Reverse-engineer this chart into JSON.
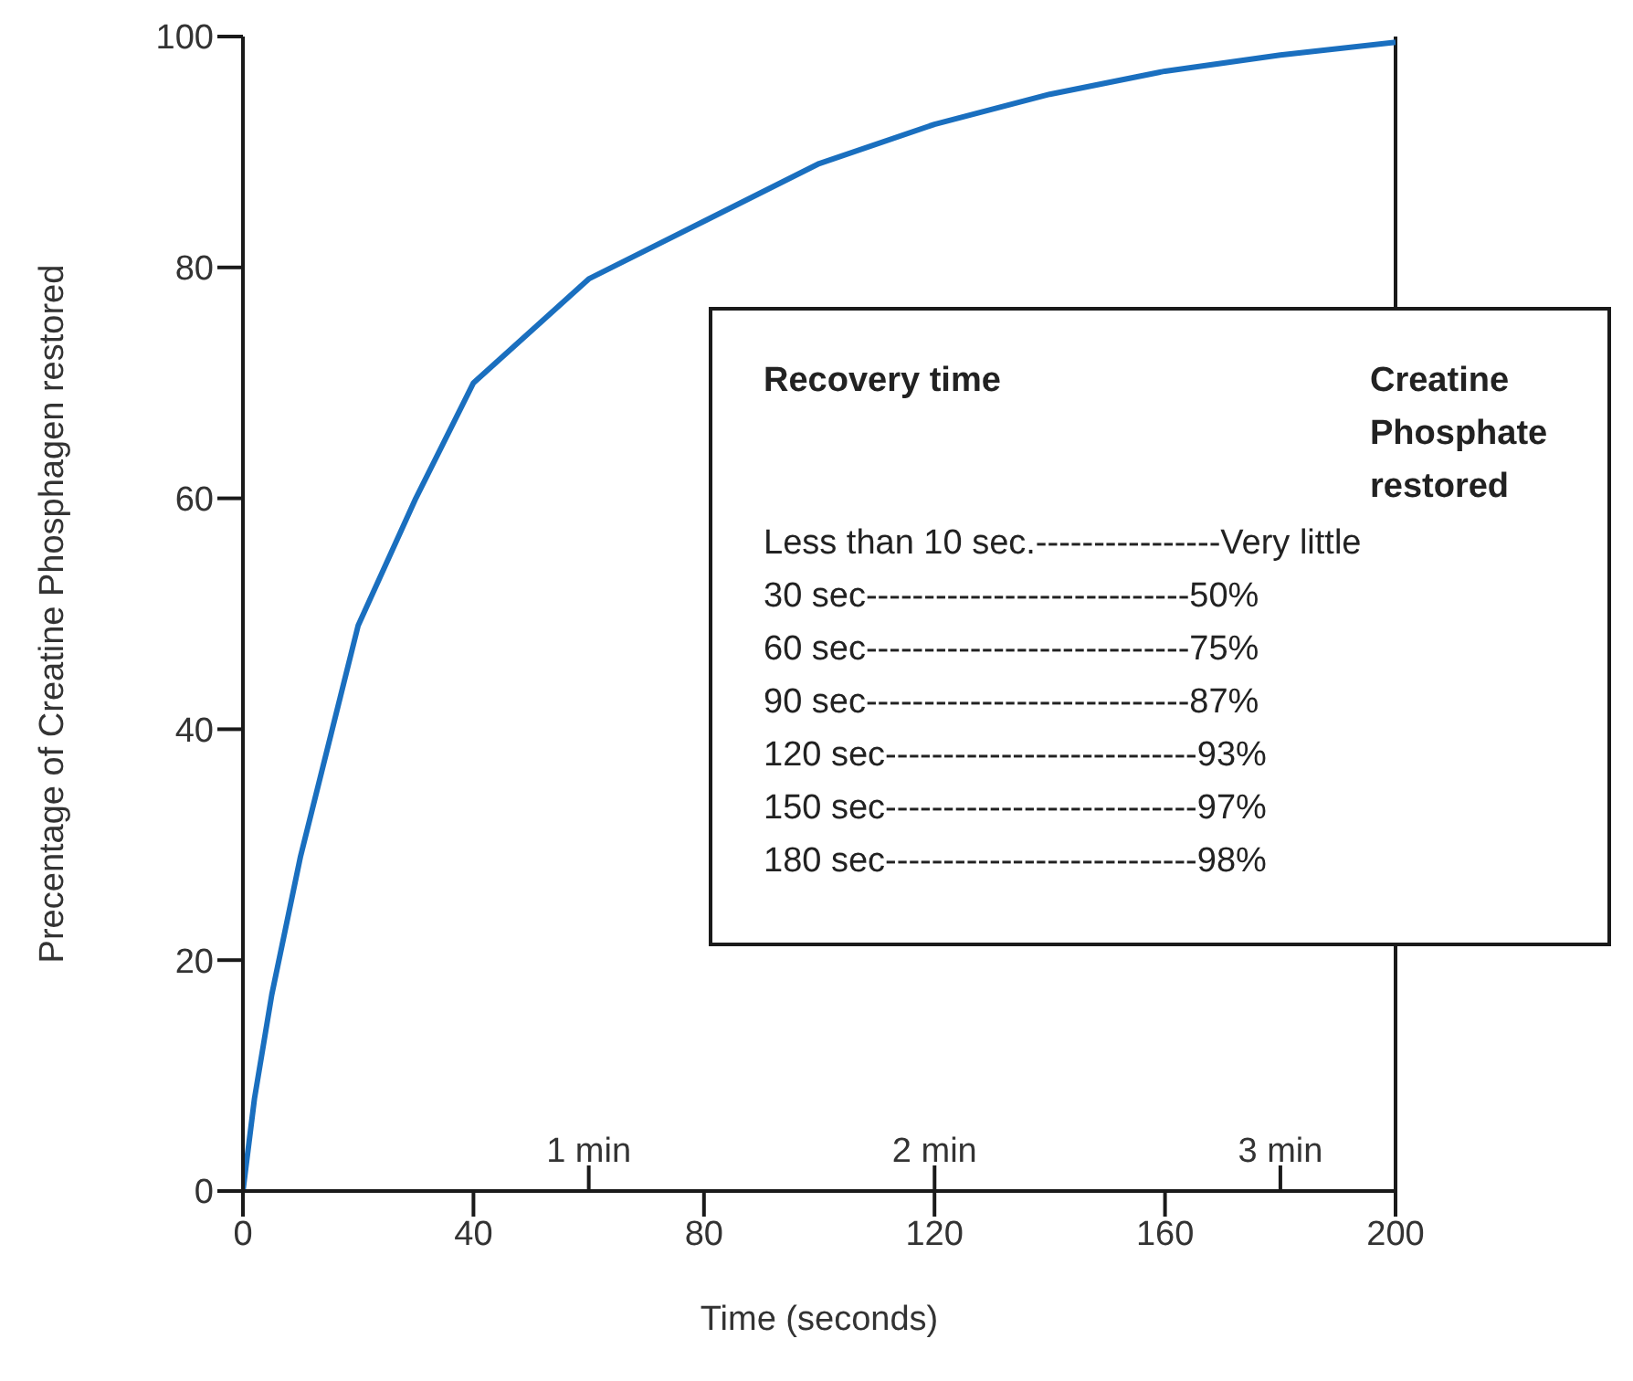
{
  "chart_data": {
    "type": "line",
    "xlabel": "Time (seconds)",
    "ylabel": "Precentage of Creatine Phosphagen restored",
    "x": [
      0,
      2,
      5,
      10,
      20,
      30,
      40,
      60,
      80,
      100,
      120,
      140,
      160,
      180,
      200
    ],
    "series": [
      {
        "color": "#1a6fbf",
        "values": [
          0,
          8,
          17,
          29,
          49,
          60,
          70,
          79,
          84,
          89,
          92.4,
          95,
          97,
          98.4,
          99.5
        ]
      }
    ],
    "xlim": [
      0,
      200
    ],
    "xticks": [
      0,
      40,
      80,
      120,
      160,
      200
    ],
    "x2lim": [
      0,
      3.333
    ],
    "x2ticks": [
      {
        "value": 1,
        "label": "1 min"
      },
      {
        "value": 2,
        "label": "2 min"
      },
      {
        "value": 3,
        "label": "3 min"
      }
    ],
    "ylim": [
      0,
      100
    ],
    "yticks": [
      0,
      20,
      40,
      60,
      80,
      100
    ],
    "ref_lines": [
      {
        "axis": "x",
        "value": 200,
        "color": "#1a1a1a"
      }
    ],
    "grid": false,
    "legend": false,
    "marker": "none",
    "line_style": "solid",
    "annotations": [
      "Recovery time",
      "Creatine Phosphate restored",
      "Less than 10 sec.----------------Very little",
      "30 sec----------------------------50%",
      "60 sec----------------------------75%",
      "90 sec----------------------------87%",
      "120 sec---------------------------93%",
      "150 sec---------------------------97%",
      "180 sec---------------------------98%"
    ]
  }
}
